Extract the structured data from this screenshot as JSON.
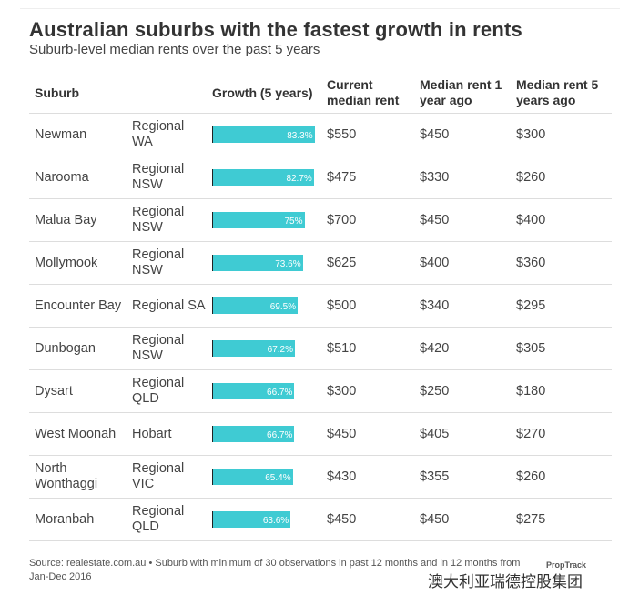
{
  "chart_data": {
    "type": "table",
    "title": "Australian suburbs with the fastest growth in rents",
    "subtitle": "Suburb-level median rents over the past 5 years",
    "columns": [
      "Suburb",
      "",
      "Growth (5 years)",
      "Current median rent",
      "Median rent 1 year ago",
      "Median rent 5 years ago"
    ],
    "rows": [
      {
        "suburb": "Newman",
        "region": "Regional WA",
        "growth": 83.3,
        "growth_label": "83.3%",
        "current": "$550",
        "y1": "$450",
        "y5": "$300"
      },
      {
        "suburb": "Narooma",
        "region": "Regional NSW",
        "growth": 82.7,
        "growth_label": "82.7%",
        "current": "$475",
        "y1": "$330",
        "y5": "$260"
      },
      {
        "suburb": "Malua Bay",
        "region": "Regional NSW",
        "growth": 75,
        "growth_label": "75%",
        "current": "$700",
        "y1": "$450",
        "y5": "$400"
      },
      {
        "suburb": "Mollymook",
        "region": "Regional NSW",
        "growth": 73.6,
        "growth_label": "73.6%",
        "current": "$625",
        "y1": "$400",
        "y5": "$360"
      },
      {
        "suburb": "Encounter Bay",
        "region": "Regional SA",
        "growth": 69.5,
        "growth_label": "69.5%",
        "current": "$500",
        "y1": "$340",
        "y5": "$295"
      },
      {
        "suburb": "Dunbogan",
        "region": "Regional NSW",
        "growth": 67.2,
        "growth_label": "67.2%",
        "current": "$510",
        "y1": "$420",
        "y5": "$305"
      },
      {
        "suburb": "Dysart",
        "region": "Regional QLD",
        "growth": 66.7,
        "growth_label": "66.7%",
        "current": "$300",
        "y1": "$250",
        "y5": "$180"
      },
      {
        "suburb": "West Moonah",
        "region": "Hobart",
        "growth": 66.7,
        "growth_label": "66.7%",
        "current": "$450",
        "y1": "$405",
        "y5": "$270"
      },
      {
        "suburb": "North Wonthaggi",
        "region": "Regional VIC",
        "growth": 65.4,
        "growth_label": "65.4%",
        "current": "$430",
        "y1": "$355",
        "y5": "$260"
      },
      {
        "suburb": "Moranbah",
        "region": "Regional QLD",
        "growth": 63.6,
        "growth_label": "63.6%",
        "current": "$450",
        "y1": "$450",
        "y5": "$275"
      }
    ],
    "bar_color": "#3fcbd3"
  },
  "footer": "Source: realestate.com.au • Suburb with minimum of 30 observations in past 12 months and in 12 months from Jan-Dec 2016",
  "logo": "PropTrack",
  "watermark": "澳大利亚瑞德控股集团"
}
